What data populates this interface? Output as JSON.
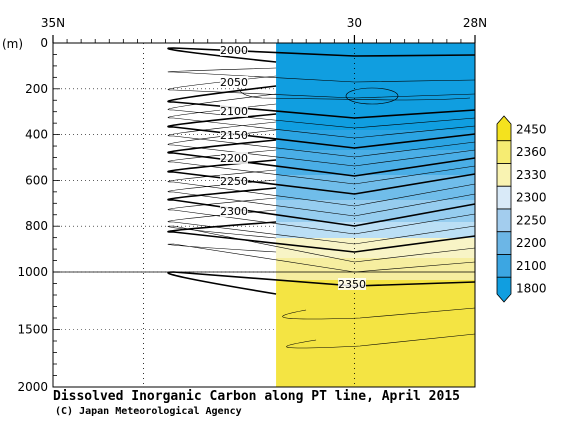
{
  "chart_data": {
    "type": "heatmap",
    "title": "Dissolved Inorganic Carbon along PT line, April 2015",
    "credit": "(C) Japan Meteorological Agency",
    "ylabel": "(m)",
    "x_tick_labels": [
      "35N",
      "30",
      "28N"
    ],
    "x_ticks_lat": [
      35,
      30,
      28
    ],
    "xlim": [
      35,
      28
    ],
    "data_start_lat": 31.3,
    "y_tick_labels": [
      "0",
      "200",
      "400",
      "600",
      "800",
      "1000",
      "1500",
      "2000"
    ],
    "y_ticks_depth": [
      0,
      200,
      400,
      600,
      800,
      1000,
      1500,
      2000
    ],
    "ylim": [
      0,
      2000
    ],
    "y_scale": "piecewise linear (0-1000 m and 1000-2000 m at different scales)",
    "contour_labels": [
      {
        "text": "2000",
        "value": 2000
      },
      {
        "text": "2050",
        "value": 2050
      },
      {
        "text": "2100",
        "value": 2100
      },
      {
        "text": "2150",
        "value": 2150
      },
      {
        "text": "2200",
        "value": 2200
      },
      {
        "text": "2250",
        "value": 2250
      },
      {
        "text": "2300",
        "value": 2300
      },
      {
        "text": "2350",
        "value": 2350
      }
    ],
    "colorbar": {
      "labels": [
        "2450",
        "2360",
        "2330",
        "2300",
        "2250",
        "2200",
        "2100",
        "1800"
      ],
      "colors": [
        "#f4e21e",
        "#f6ec72",
        "#f9f3b2",
        "#d9eaf8",
        "#a3cdee",
        "#6cb6e6",
        "#3ca6e2",
        "#109ee0"
      ]
    },
    "colors": {
      "dic_high": "#f4e21e",
      "dic_low": "#109ee0"
    }
  }
}
